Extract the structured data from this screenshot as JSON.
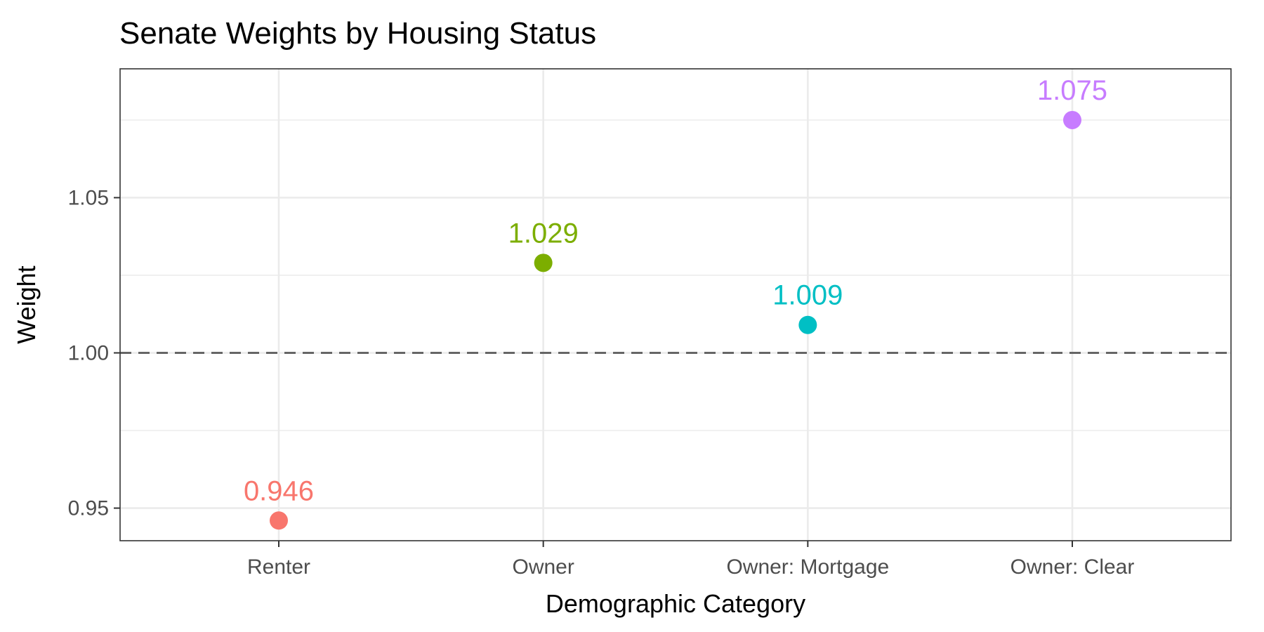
{
  "chart_data": {
    "type": "scatter",
    "title": "Senate Weights by Housing Status",
    "xlabel": "Demographic Category",
    "ylabel": "Weight",
    "categories": [
      "Renter",
      "Owner",
      "Owner: Mortgage",
      "Owner: Clear"
    ],
    "values": [
      0.946,
      1.029,
      1.009,
      1.075
    ],
    "data_labels": [
      "0.946",
      "1.029",
      "1.009",
      "1.075"
    ],
    "colors": [
      "#F8766D",
      "#7CAE00",
      "#00BFC4",
      "#C77CFF"
    ],
    "ylim": [
      0.9395,
      1.0915
    ],
    "yticks": [
      0.95,
      1.0,
      1.05
    ],
    "ytick_labels": [
      "0.95",
      "1.00",
      "1.05"
    ],
    "yminor": [
      0.975,
      1.025,
      1.075
    ],
    "reference_line": {
      "y": 1.0,
      "style": "dashed",
      "color": "#666666"
    },
    "grid": true,
    "legend": "none"
  }
}
